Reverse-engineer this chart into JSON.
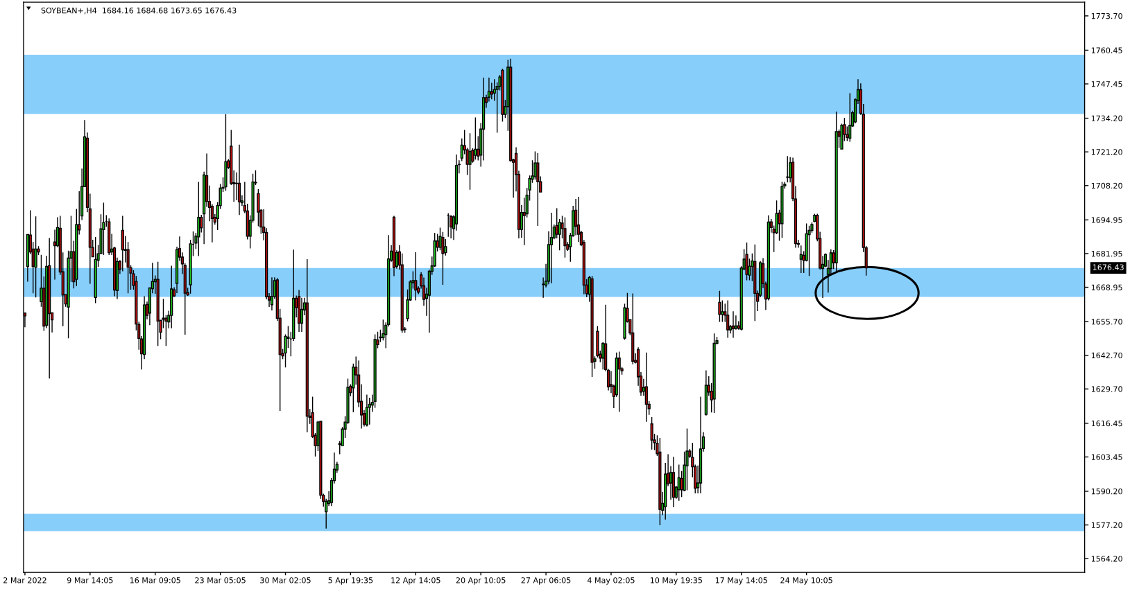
{
  "chart_data": {
    "type": "candlestick",
    "title": "SOYBEAN+,H4  1684.16 1684.68 1673.65 1676.43",
    "categories": [
      "2 Mar 2022",
      null,
      null,
      null,
      null,
      null,
      null,
      null,
      null,
      null,
      null,
      null,
      null,
      null,
      null,
      null,
      null,
      null,
      null,
      null,
      null,
      null,
      null,
      null,
      "9 Mar 14:05",
      null,
      null,
      null,
      null,
      null,
      null,
      null,
      null,
      null,
      null,
      null,
      null,
      null,
      null,
      null,
      null,
      null,
      null,
      null,
      null,
      null,
      null,
      null,
      "16 Mar 09:05",
      null,
      null,
      null,
      null,
      null,
      null,
      null,
      null,
      null,
      null,
      null,
      null,
      null,
      null,
      null,
      null,
      null,
      null,
      null,
      null,
      null,
      null,
      null,
      "23 Mar 05:05",
      null,
      null,
      null,
      null,
      null,
      null,
      null,
      null,
      null,
      null,
      null,
      null,
      null,
      null,
      null,
      null,
      null,
      null,
      null,
      null,
      null,
      null,
      null,
      "30 Mar 02:05",
      null,
      null,
      null,
      null,
      null,
      null,
      null,
      null,
      null,
      null,
      null,
      null,
      null,
      null,
      null,
      null,
      null,
      null,
      null,
      null,
      null,
      null,
      null,
      "5 Apr 19:35",
      null,
      null,
      null,
      null,
      null,
      null,
      null,
      null,
      null,
      null,
      null,
      null,
      null,
      null,
      null,
      null,
      null,
      null,
      null,
      null,
      null,
      null,
      null,
      "12 Apr 14:05",
      null,
      null,
      null,
      null,
      null,
      null,
      null,
      null,
      null,
      null,
      null,
      null,
      null,
      null,
      null,
      null,
      null,
      null,
      null,
      null,
      null,
      null,
      null,
      "20 Apr 10:05",
      null,
      null,
      null,
      null,
      null,
      null,
      null,
      null,
      null,
      null,
      null,
      null,
      null,
      null,
      null,
      null,
      null,
      null,
      null,
      null,
      null,
      null,
      null,
      "27 Apr 06:05",
      null,
      null,
      null,
      null,
      null,
      null,
      null,
      null,
      null,
      null,
      null,
      null,
      null,
      null,
      null,
      null,
      null,
      null,
      null,
      null,
      null,
      null,
      null,
      "4 May 02:05",
      null,
      null,
      null,
      null,
      null,
      null,
      null,
      null,
      null,
      null,
      null,
      null,
      null,
      null,
      null,
      null,
      null,
      null,
      null,
      null,
      null,
      null,
      null,
      "10 May 19:35",
      null,
      null,
      null,
      null,
      null,
      null,
      null,
      null,
      null,
      null,
      null,
      null,
      null,
      null,
      null,
      null,
      null,
      null,
      null,
      null,
      null,
      null,
      null,
      "17 May 14:05",
      null,
      null,
      null,
      null,
      null,
      null,
      null,
      null,
      null,
      null,
      null,
      null,
      null,
      null,
      null,
      null,
      null,
      null,
      null,
      null,
      null,
      null,
      null,
      "24 May 10:05",
      null,
      null,
      null,
      null,
      null,
      null,
      null,
      null,
      null,
      null,
      null,
      null,
      null,
      null,
      null,
      null,
      null,
      null,
      null,
      null,
      null,
      null,
      null,
      null,
      null,
      null,
      null,
      null,
      null,
      null,
      null,
      null,
      null,
      null,
      null,
      null,
      null,
      null,
      null,
      null,
      null,
      null,
      null,
      null,
      null,
      null,
      null,
      null,
      null,
      null,
      null,
      null,
      null,
      null,
      null,
      null,
      null,
      null,
      null,
      null,
      null,
      null,
      null,
      null,
      null,
      null,
      null,
      null,
      null,
      null,
      null,
      null,
      null,
      null,
      null,
      null,
      null,
      null,
      null,
      null,
      null,
      null,
      null,
      null,
      null,
      null,
      null,
      null,
      null,
      null,
      null,
      null,
      null,
      null,
      null,
      null,
      null,
      null,
      null,
      null,
      null,
      null
    ],
    "ohlc": [
      [
        1659.0,
        1659.0,
        1653.7,
        1657.9
      ],
      [
        1677.0,
        1689.3,
        1671.3,
        1689.3
      ],
      [
        1689.1,
        1698.5,
        1681.9,
        1682.6
      ],
      [
        1683.7,
        1686.2,
        1666.8,
        1677.0
      ],
      [
        1676.7,
        1696.1,
        1665.2,
        1683.7
      ],
      [
        1683.7,
        1684.6,
        1681.6,
        1682.6
      ],
      [
        1663.4,
        1681.3,
        1661.6,
        1668.6
      ],
      [
        1668.6,
        1672.9,
        1652.3,
        1654.0
      ],
      [
        1654.3,
        1680.9,
        1653.4,
        1677.0
      ],
      [
        1677.3,
        1687.8,
        1633.9,
        1658.8
      ],
      [
        1659.1,
        1659.1,
        1651.7,
        1656.4
      ],
      [
        1686.4,
        1691.0,
        1672.1,
        1685.0
      ],
      [
        1685.0,
        1695.8,
        1684.6,
        1692.0
      ],
      [
        1691.7,
        1696.3,
        1673.9,
        1674.8
      ],
      [
        1674.9,
        1682.2,
        1654.1,
        1666.0
      ],
      [
        1666.1,
        1666.1,
        1661.6,
        1662.5
      ],
      [
        1661.3,
        1682.9,
        1649.4,
        1680.2
      ],
      [
        1680.2,
        1696.3,
        1671.2,
        1682.7
      ],
      [
        1682.7,
        1686.7,
        1668.7,
        1671.1
      ],
      [
        1672.0,
        1699.0,
        1669.6,
        1693.1
      ],
      [
        1693.1,
        1705.8,
        1689.5,
        1691.1
      ],
      [
        1696.5,
        1714.6,
        1695.1,
        1707.8
      ],
      [
        1707.8,
        1733.3,
        1707.8,
        1727.0
      ],
      [
        1726.5,
        1728.5,
        1698.1,
        1699.8
      ],
      [
        1699.2,
        1704.9,
        1670.5,
        1684.4
      ],
      [
        1684.3,
        1687.1,
        1680.7,
        1680.7
      ],
      [
        1665.0,
        1688.2,
        1663.0,
        1679.7
      ],
      [
        1679.4,
        1685.1,
        1677.0,
        1681.9
      ],
      [
        1682.0,
        1696.9,
        1682.0,
        1691.5
      ],
      [
        1691.2,
        1701.4,
        1681.6,
        1693.9
      ],
      [
        1694.4,
        1696.6,
        1692.5,
        1694.4
      ],
      [
        1694.2,
        1695.3,
        1681.6,
        1682.3
      ],
      [
        1682.6,
        1689.4,
        1681.6,
        1683.7
      ],
      [
        1684.1,
        1684.4,
        1665.7,
        1667.9
      ],
      [
        1667.7,
        1680.2,
        1664.6,
        1678.9
      ],
      [
        1678.9,
        1679.3,
        1674.3,
        1675.9
      ],
      [
        1690.9,
        1696.3,
        1675.3,
        1683.4
      ],
      [
        1683.5,
        1688.6,
        1678.7,
        1683.2
      ],
      [
        1683.5,
        1686.2,
        1666.8,
        1676.7
      ],
      [
        1676.5,
        1677.3,
        1668.2,
        1674.4
      ],
      [
        1674.1,
        1675.3,
        1668.2,
        1669.7
      ],
      [
        1671.2,
        1673.1,
        1652.5,
        1654.8
      ],
      [
        1654.6,
        1655.5,
        1645.0,
        1649.2
      ],
      [
        1649.0,
        1649.9,
        1637.4,
        1643.3
      ],
      [
        1643.0,
        1665.3,
        1641.4,
        1662.1
      ],
      [
        1662.3,
        1663.2,
        1656.8,
        1658.1
      ],
      [
        1659.0,
        1668.7,
        1654.5,
        1668.7
      ],
      [
        1668.4,
        1678.2,
        1666.8,
        1671.2
      ],
      [
        1671.1,
        1673.3,
        1666.6,
        1672.0
      ],
      [
        1672.0,
        1678.6,
        1646.5,
        1655.9
      ],
      [
        1656.2,
        1656.2,
        1649.1,
        1651.6
      ],
      [
        1657.0,
        1664.3,
        1653.4,
        1656.6
      ],
      [
        1657.0,
        1658.1,
        1646.5,
        1655.9
      ],
      [
        1655.6,
        1659.7,
        1653.3,
        1658.1
      ],
      [
        1658.1,
        1677.1,
        1653.3,
        1668.3
      ],
      [
        1668.0,
        1668.8,
        1665.4,
        1665.6
      ],
      [
        1670.4,
        1684.4,
        1666.9,
        1683.5
      ],
      [
        1683.9,
        1688.4,
        1679.3,
        1680.6
      ],
      [
        1680.6,
        1682.2,
        1674.2,
        1678.0
      ],
      [
        1677.4,
        1678.0,
        1650.8,
        1666.7
      ],
      [
        1666.9,
        1668.6,
        1665.8,
        1666.0
      ],
      [
        1669.9,
        1687.1,
        1666.7,
        1685.7
      ],
      [
        1685.5,
        1690.3,
        1681.2,
        1685.5
      ],
      [
        1686.0,
        1689.8,
        1683.9,
        1688.7
      ],
      [
        1688.4,
        1709.4,
        1681.2,
        1695.9
      ],
      [
        1695.9,
        1696.7,
        1690.3,
        1691.9
      ],
      [
        1697.3,
        1713.4,
        1685.8,
        1712.3
      ],
      [
        1712.0,
        1720.4,
        1700.2,
        1702.1
      ],
      [
        1702.1,
        1708.0,
        1694.6,
        1699.8
      ],
      [
        1700.2,
        1700.8,
        1686.5,
        1695.5
      ],
      [
        1695.9,
        1697.0,
        1693.3,
        1694.1
      ],
      [
        1695.5,
        1701.6,
        1691.2,
        1700.5
      ],
      [
        1700.5,
        1708.6,
        1699.4,
        1707.2
      ],
      [
        1707.2,
        1711.2,
        1705.9,
        1707.5
      ],
      [
        1707.7,
        1735.6,
        1706.4,
        1717.4
      ],
      [
        1717.7,
        1718.2,
        1714.8,
        1715.2
      ],
      [
        1723.4,
        1729.5,
        1708.6,
        1709.1
      ],
      [
        1709.3,
        1713.9,
        1702.1,
        1708.9
      ],
      [
        1709.1,
        1713.1,
        1702.7,
        1709.0
      ],
      [
        1709.1,
        1723.8,
        1697.0,
        1701.9
      ],
      [
        1701.6,
        1704.3,
        1700.5,
        1702.3
      ],
      [
        1700.5,
        1709.4,
        1697.8,
        1698.4
      ],
      [
        1698.4,
        1701.0,
        1687.6,
        1688.7
      ],
      [
        1688.7,
        1696.5,
        1684.1,
        1694.8
      ],
      [
        1694.8,
        1712.6,
        1694.1,
        1709.6
      ],
      [
        1709.4,
        1713.9,
        1708.6,
        1709.3
      ],
      [
        1705.1,
        1706.6,
        1692.7,
        1698.0
      ],
      [
        1698.7,
        1698.9,
        1689.8,
        1692.2
      ],
      [
        1692.2,
        1698.9,
        1687.3,
        1690.1
      ],
      [
        1690.1,
        1691.6,
        1664.5,
        1665.3
      ],
      [
        1665.4,
        1666.5,
        1661.5,
        1664.0
      ],
      [
        1662.2,
        1672.6,
        1660.2,
        1665.4
      ],
      [
        1665.4,
        1672.6,
        1664.7,
        1671.5
      ],
      [
        1671.8,
        1672.3,
        1656.1,
        1657.0
      ],
      [
        1657.0,
        1660.4,
        1621.4,
        1643.0
      ],
      [
        1643.4,
        1645.0,
        1641.4,
        1642.5
      ],
      [
        1643.6,
        1650.6,
        1638.2,
        1650.0
      ],
      [
        1649.2,
        1653.8,
        1645.7,
        1649.7
      ],
      [
        1649.0,
        1651.6,
        1642.5,
        1649.0
      ],
      [
        1649.2,
        1683.3,
        1648.4,
        1664.7
      ],
      [
        1664.7,
        1665.6,
        1657.5,
        1661.1
      ],
      [
        1665.4,
        1667.7,
        1651.9,
        1655.1
      ],
      [
        1655.1,
        1664.7,
        1651.9,
        1660.4
      ],
      [
        1660.2,
        1664.7,
        1658.3,
        1662.9
      ],
      [
        1662.9,
        1679.6,
        1613.2,
        1619.2
      ],
      [
        1619.2,
        1621.8,
        1616.4,
        1618.7
      ],
      [
        1620.5,
        1626.5,
        1611.0,
        1611.3
      ],
      [
        1611.8,
        1612.5,
        1603.8,
        1607.8
      ],
      [
        1607.8,
        1617.2,
        1605.9,
        1616.9
      ],
      [
        1617.2,
        1617.2,
        1587.5,
        1588.7
      ],
      [
        1588.7,
        1589.1,
        1584.4,
        1586.3
      ],
      [
        1582.3,
        1587.1,
        1576.0,
        1586.3
      ],
      [
        1585.5,
        1590.1,
        1584.7,
        1586.5
      ],
      [
        1585.9,
        1595.1,
        1584.7,
        1594.3
      ],
      [
        1594.3,
        1605.0,
        1593.4,
        1598.7
      ],
      [
        1598.4,
        1601.4,
        1597.5,
        1600.6
      ],
      [
        1608.2,
        1609.4,
        1604.7,
        1608.6
      ],
      [
        1607.8,
        1614.8,
        1607.8,
        1614.2
      ],
      [
        1614.2,
        1619.0,
        1611.0,
        1616.9
      ],
      [
        1616.7,
        1633.5,
        1616.4,
        1630.3
      ],
      [
        1630.7,
        1631.3,
        1627.1,
        1628.3
      ],
      [
        1630.1,
        1639.3,
        1620.9,
        1638.1
      ],
      [
        1638.1,
        1642.0,
        1631.6,
        1635.1
      ],
      [
        1635.1,
        1640.5,
        1622.9,
        1624.7
      ],
      [
        1624.9,
        1631.3,
        1614.6,
        1619.7
      ],
      [
        1620.2,
        1621.4,
        1615.4,
        1616.1
      ],
      [
        1615.8,
        1627.3,
        1615.4,
        1622.6
      ],
      [
        1622.6,
        1626.1,
        1616.1,
        1623.8
      ],
      [
        1623.5,
        1627.3,
        1621.1,
        1624.5
      ],
      [
        1624.9,
        1650.6,
        1622.6,
        1648.8
      ],
      [
        1648.6,
        1651.6,
        1645.6,
        1646.8
      ],
      [
        1649.4,
        1652.4,
        1648.0,
        1649.7
      ],
      [
        1649.5,
        1656.3,
        1648.6,
        1651.0
      ],
      [
        1650.7,
        1655.2,
        1645.6,
        1654.3
      ],
      [
        1654.6,
        1688.9,
        1654.0,
        1679.9
      ],
      [
        1679.4,
        1685.0,
        1679.0,
        1682.9
      ],
      [
        1696.0,
        1696.3,
        1673.4,
        1676.6
      ],
      [
        1677.0,
        1683.0,
        1676.3,
        1682.3
      ],
      [
        1682.6,
        1685.0,
        1676.0,
        1677.5
      ],
      [
        1677.6,
        1681.8,
        1651.6,
        1652.4
      ],
      [
        1652.8,
        1653.4,
        1651.6,
        1652.6
      ],
      [
        1656.9,
        1667.9,
        1656.0,
        1664.1
      ],
      [
        1664.1,
        1671.5,
        1663.9,
        1671.0
      ],
      [
        1670.7,
        1674.9,
        1668.6,
        1671.5
      ],
      [
        1671.5,
        1682.3,
        1664.1,
        1667.9
      ],
      [
        1668.6,
        1669.1,
        1666.5,
        1667.1
      ],
      [
        1673.7,
        1674.6,
        1668.6,
        1669.5
      ],
      [
        1669.5,
        1672.5,
        1662.0,
        1664.3
      ],
      [
        1664.7,
        1668.6,
        1658.1,
        1666.3
      ],
      [
        1665.9,
        1675.5,
        1651.6,
        1675.1
      ],
      [
        1675.1,
        1680.6,
        1673.9,
        1677.2
      ],
      [
        1677.2,
        1689.8,
        1677.0,
        1686.8
      ],
      [
        1686.8,
        1689.4,
        1683.0,
        1684.4
      ],
      [
        1684.4,
        1691.8,
        1683.4,
        1688.6
      ],
      [
        1688.2,
        1690.1,
        1670.1,
        1682.0
      ],
      [
        1682.3,
        1687.4,
        1681.4,
        1684.6
      ],
      [
        1696.7,
        1697.3,
        1688.6,
        1696.7
      ],
      [
        1696.3,
        1696.6,
        1688.0,
        1692.2
      ],
      [
        1691.6,
        1696.6,
        1687.4,
        1696.1
      ],
      [
        1693.4,
        1720.0,
        1691.0,
        1716.0
      ],
      [
        1716.3,
        1717.8,
        1713.1,
        1716.4
      ],
      [
        1718.8,
        1726.2,
        1717.8,
        1723.8
      ],
      [
        1723.6,
        1729.5,
        1720.5,
        1722.0
      ],
      [
        1722.0,
        1722.6,
        1712.5,
        1716.4
      ],
      [
        1716.4,
        1728.2,
        1706.8,
        1721.4
      ],
      [
        1721.8,
        1722.4,
        1717.2,
        1717.6
      ],
      [
        1719.9,
        1734.3,
        1718.4,
        1722.2
      ],
      [
        1722.2,
        1727.1,
        1718.1,
        1719.6
      ],
      [
        1720.0,
        1732.2,
        1715.7,
        1730.0
      ],
      [
        1730.0,
        1749.7,
        1718.1,
        1742.1
      ],
      [
        1742.1,
        1743.1,
        1738.4,
        1740.3
      ],
      [
        1742.3,
        1749.7,
        1740.8,
        1744.5
      ],
      [
        1744.5,
        1747.7,
        1741.7,
        1743.5
      ],
      [
        1743.9,
        1749.1,
        1741.1,
        1745.3
      ],
      [
        1745.3,
        1747.9,
        1728.8,
        1746.5
      ],
      [
        1746.5,
        1750.7,
        1745.1,
        1750.1
      ],
      [
        1752.7,
        1753.1,
        1733.1,
        1735.7
      ],
      [
        1735.7,
        1741.1,
        1734.5,
        1738.7
      ],
      [
        1738.7,
        1756.6,
        1729.5,
        1753.9
      ],
      [
        1753.9,
        1757.0,
        1717.6,
        1717.8
      ],
      [
        1718.1,
        1718.4,
        1703.7,
        1717.2
      ],
      [
        1720.6,
        1722.8,
        1706.1,
        1712.5
      ],
      [
        1712.5,
        1713.7,
        1688.0,
        1691.3
      ],
      [
        1691.3,
        1700.5,
        1688.2,
        1697.8
      ],
      [
        1697.8,
        1703.3,
        1685.4,
        1696.6
      ],
      [
        1697.3,
        1707.1,
        1696.1,
        1704.5
      ],
      [
        1706.5,
        1711.9,
        1702.6,
        1710.9
      ],
      [
        1710.7,
        1717.8,
        1709.5,
        1711.9
      ],
      [
        1711.6,
        1721.2,
        1710.7,
        1716.9
      ],
      [
        1716.9,
        1720.5,
        1692.8,
        1709.7
      ],
      [
        1709.7,
        1711.6,
        1705.7,
        1705.7
      ],
      [
        1670.1,
        1672.5,
        1665.1,
        1670.0
      ],
      [
        1669.8,
        1677.8,
        1669.1,
        1671.3
      ],
      [
        1671.3,
        1690.4,
        1670.3,
        1685.4
      ],
      [
        1685.4,
        1697.5,
        1670.7,
        1688.2
      ],
      [
        1688.0,
        1693.0,
        1687.7,
        1692.2
      ],
      [
        1692.8,
        1699.3,
        1688.0,
        1689.4
      ],
      [
        1689.4,
        1695.1,
        1683.4,
        1694.0
      ],
      [
        1693.7,
        1696.3,
        1688.0,
        1691.6
      ],
      [
        1691.6,
        1695.7,
        1680.6,
        1685.0
      ],
      [
        1685.4,
        1686.2,
        1683.2,
        1683.6
      ],
      [
        1684.6,
        1689.8,
        1679.0,
        1688.9
      ],
      [
        1688.9,
        1700.2,
        1688.6,
        1698.5
      ],
      [
        1698.7,
        1702.9,
        1689.2,
        1692.5
      ],
      [
        1693.0,
        1703.7,
        1686.6,
        1689.4
      ],
      [
        1690.1,
        1690.6,
        1685.0,
        1685.4
      ],
      [
        1686.2,
        1687.0,
        1666.5,
        1669.8
      ],
      [
        1669.8,
        1671.9,
        1665.3,
        1666.5
      ],
      [
        1666.3,
        1673.1,
        1663.5,
        1672.7
      ],
      [
        1672.2,
        1673.1,
        1634.5,
        1640.0
      ],
      [
        1640.4,
        1642.1,
        1637.7,
        1641.3
      ],
      [
        1651.9,
        1653.8,
        1642.1,
        1642.6
      ],
      [
        1643.1,
        1644.3,
        1640.2,
        1641.6
      ],
      [
        1641.6,
        1647.6,
        1637.4,
        1647.3
      ],
      [
        1647.1,
        1662.0,
        1636.7,
        1637.2
      ],
      [
        1636.9,
        1637.2,
        1629.3,
        1630.5
      ],
      [
        1631.4,
        1636.4,
        1628.3,
        1630.8
      ],
      [
        1630.8,
        1631.2,
        1622.5,
        1626.8
      ],
      [
        1627.5,
        1643.6,
        1626.8,
        1641.6
      ],
      [
        1641.6,
        1643.9,
        1621.1,
        1637.4
      ],
      [
        1637.5,
        1638.0,
        1635.4,
        1636.7
      ],
      [
        1649.3,
        1662.4,
        1648.9,
        1661.0
      ],
      [
        1660.8,
        1666.6,
        1655.5,
        1655.8
      ],
      [
        1656.5,
        1656.5,
        1650.6,
        1651.3
      ],
      [
        1651.3,
        1666.4,
        1639.4,
        1640.4
      ],
      [
        1640.7,
        1643.3,
        1639.7,
        1640.0
      ],
      [
        1644.9,
        1645.6,
        1631.1,
        1634.4
      ],
      [
        1634.7,
        1636.0,
        1627.3,
        1628.5
      ],
      [
        1628.8,
        1633.4,
        1627.3,
        1630.3
      ],
      [
        1630.5,
        1643.6,
        1617.2,
        1623.8
      ],
      [
        1623.8,
        1624.8,
        1619.9,
        1622.1
      ],
      [
        1616.2,
        1618.6,
        1606.5,
        1610.0
      ],
      [
        1610.0,
        1612.2,
        1606.3,
        1609.0
      ],
      [
        1608.7,
        1611.6,
        1604.0,
        1604.7
      ],
      [
        1605.3,
        1610.6,
        1577.3,
        1583.2
      ],
      [
        1582.9,
        1589.8,
        1581.2,
        1585.5
      ],
      [
        1584.2,
        1601.0,
        1579.5,
        1596.8
      ],
      [
        1597.1,
        1604.3,
        1592.4,
        1593.1
      ],
      [
        1593.4,
        1599.7,
        1587.2,
        1597.4
      ],
      [
        1597.4,
        1603.3,
        1584.2,
        1587.9
      ],
      [
        1587.9,
        1592.1,
        1587.5,
        1591.8
      ],
      [
        1590.8,
        1600.3,
        1586.7,
        1595.4
      ],
      [
        1595.1,
        1597.8,
        1588.2,
        1590.8
      ],
      [
        1590.6,
        1605.3,
        1590.4,
        1600.3
      ],
      [
        1600.0,
        1614.2,
        1590.8,
        1605.7
      ],
      [
        1605.7,
        1606.3,
        1603.3,
        1603.7
      ],
      [
        1603.3,
        1608.7,
        1595.8,
        1599.7
      ],
      [
        1599.7,
        1600.3,
        1589.6,
        1591.4
      ],
      [
        1591.6,
        1600.0,
        1589.6,
        1593.4
      ],
      [
        1593.4,
        1626.5,
        1589.6,
        1606.5
      ],
      [
        1606.7,
        1612.9,
        1605.7,
        1611.2
      ],
      [
        1619.9,
        1636.7,
        1619.6,
        1631.1
      ],
      [
        1631.1,
        1634.4,
        1627.3,
        1628.5
      ],
      [
        1628.8,
        1631.7,
        1620.8,
        1625.5
      ],
      [
        1625.8,
        1650.9,
        1620.6,
        1647.3
      ],
      [
        1647.3,
        1649.6,
        1647.1,
        1648.3
      ],
      [
        1663.1,
        1667.4,
        1655.8,
        1658.5
      ],
      [
        1658.5,
        1663.7,
        1655.8,
        1659.5
      ],
      [
        1659.5,
        1662.4,
        1655.8,
        1658.2
      ],
      [
        1658.2,
        1663.7,
        1649.6,
        1652.5
      ],
      [
        1652.5,
        1654.2,
        1651.3,
        1653.8
      ],
      [
        1654.0,
        1659.5,
        1649.6,
        1653.0
      ],
      [
        1653.1,
        1657.9,
        1652.8,
        1654.0
      ],
      [
        1654.1,
        1655.7,
        1652.8,
        1653.1
      ],
      [
        1652.8,
        1676.9,
        1652.5,
        1676.4
      ],
      [
        1676.0,
        1683.5,
        1675.7,
        1679.8
      ],
      [
        1681.6,
        1686.0,
        1671.8,
        1673.9
      ],
      [
        1673.6,
        1679.8,
        1671.8,
        1677.1
      ],
      [
        1676.9,
        1681.8,
        1671.5,
        1679.1
      ],
      [
        1678.9,
        1685.3,
        1656.1,
        1666.6
      ],
      [
        1666.6,
        1667.5,
        1659.9,
        1663.5
      ],
      [
        1665.9,
        1678.9,
        1665.3,
        1678.4
      ],
      [
        1678.0,
        1680.0,
        1668.8,
        1670.4
      ],
      [
        1670.2,
        1670.9,
        1660.4,
        1664.4
      ],
      [
        1664.6,
        1696.5,
        1664.1,
        1694.1
      ],
      [
        1694.2,
        1695.1,
        1690.2,
        1692.0
      ],
      [
        1691.4,
        1692.6,
        1682.7,
        1690.0
      ],
      [
        1690.0,
        1702.3,
        1689.6,
        1697.4
      ],
      [
        1697.6,
        1698.7,
        1687.1,
        1693.5
      ],
      [
        1693.5,
        1709.4,
        1688.2,
        1707.8
      ],
      [
        1708.1,
        1709.4,
        1707.2,
        1708.7
      ],
      [
        1711.4,
        1719.4,
        1709.6,
        1711.5
      ],
      [
        1711.2,
        1719.0,
        1709.6,
        1717.0
      ],
      [
        1717.2,
        1718.8,
        1702.4,
        1703.2
      ],
      [
        1703.0,
        1707.8,
        1684.4,
        1685.8
      ],
      [
        1685.8,
        1687.1,
        1684.4,
        1685.6
      ],
      [
        1679.8,
        1684.9,
        1674.6,
        1681.6
      ],
      [
        1681.3,
        1682.7,
        1674.6,
        1679.3
      ],
      [
        1679.3,
        1693.4,
        1679.1,
        1689.6
      ],
      [
        1689.3,
        1692.5,
        1673.5,
        1690.9
      ],
      [
        1690.9,
        1693.8,
        1690.2,
        1693.2
      ],
      [
        1694.4,
        1697.1,
        1694.2,
        1696.7
      ],
      [
        1696.7,
        1697.1,
        1686.9,
        1687.6
      ],
      [
        1687.8,
        1690.2,
        1676.0,
        1676.4
      ],
      [
        1676.2,
        1680.9,
        1665.0,
        1677.8
      ],
      [
        1677.1,
        1681.8,
        1676.9,
        1681.6
      ],
      [
        1673.9,
        1679.3,
        1667.1,
        1676.2
      ],
      [
        1676.2,
        1683.4,
        1673.9,
        1682.2
      ],
      [
        1682.2,
        1683.1,
        1676.2,
        1678.4
      ],
      [
        1678.4,
        1736.6,
        1674.6,
        1729.0
      ],
      [
        1729.0,
        1729.7,
        1722.9,
        1727.2
      ],
      [
        1722.3,
        1731.9,
        1722.3,
        1731.5
      ],
      [
        1731.7,
        1734.2,
        1725.6,
        1727.9
      ],
      [
        1727.9,
        1730.8,
        1725.6,
        1726.8
      ],
      [
        1726.5,
        1743.7,
        1725.3,
        1731.5
      ],
      [
        1731.2,
        1736.9,
        1731.0,
        1736.3
      ],
      [
        1732.8,
        1741.7,
        1732.4,
        1741.3
      ],
      [
        1741.0,
        1749.1,
        1739.9,
        1745.2
      ],
      [
        1745.2,
        1747.5,
        1735.7,
        1736.1
      ],
      [
        1735.7,
        1739.5,
        1682.7,
        1684.3
      ],
      [
        1684.16,
        1684.68,
        1673.65,
        1676.43
      ],
      null,
      null,
      null,
      null,
      null,
      null,
      null,
      null,
      null,
      null,
      null,
      null,
      null,
      null,
      null,
      null,
      null,
      null,
      null,
      null,
      null,
      null,
      null,
      null,
      null,
      null,
      null,
      null,
      null,
      null,
      null,
      null,
      null,
      null,
      null,
      null,
      null,
      null,
      null,
      null,
      null,
      null,
      null,
      null,
      null,
      null,
      null,
      null,
      null,
      null,
      null,
      null,
      null,
      null,
      null,
      null,
      null,
      null,
      null,
      null,
      null,
      null,
      null,
      null,
      null,
      null,
      null,
      null,
      null,
      null,
      null,
      null,
      null,
      null,
      null,
      null,
      null,
      null,
      null,
      null
    ],
    "colors": [
      "#cc1111",
      "#1ec81e",
      "#cc1111",
      "#cc1111",
      "#1ec81e",
      "#cc1111",
      "#1ec81e",
      "#cc1111",
      "#1ec81e",
      "#cc1111",
      "#cc1111",
      "#cc1111",
      "#1ec81e",
      "#cc1111",
      "#cc1111",
      "#cc1111",
      "#1ec81e",
      "#1ec81e",
      "#cc1111",
      "#1ec81e",
      "#cc1111",
      "#1ec81e",
      "#1ec81e",
      "#cc1111",
      "#cc1111",
      "#cc1111",
      "#1ec81e",
      "#1ec81e",
      "#1ec81e",
      "#1ec81e",
      "#000000",
      "#cc1111",
      "#1ec81e",
      "#cc1111",
      "#1ec81e",
      "#cc1111",
      "#cc1111",
      "#cc1111",
      "#cc1111",
      "#cc1111",
      "#cc1111",
      "#cc1111",
      "#cc1111",
      "#cc1111",
      "#1ec81e",
      "#cc1111",
      "#1ec81e",
      "#1ec81e",
      "#1ec81e",
      "#cc1111",
      "#cc1111",
      "#cc1111",
      "#cc1111",
      "#1ec81e",
      "#1ec81e",
      "#cc1111",
      "#1ec81e",
      "#cc1111",
      "#cc1111",
      "#cc1111",
      "#cc1111",
      "#1ec81e",
      "#000000",
      "#1ec81e",
      "#1ec81e",
      "#cc1111",
      "#1ec81e",
      "#cc1111",
      "#cc1111",
      "#cc1111",
      "#cc1111",
      "#1ec81e",
      "#1ec81e",
      "#1ec81e",
      "#1ec81e",
      "#cc1111",
      "#cc1111",
      "#cc1111",
      "#cc1111",
      "#cc1111",
      "#1ec81e",
      "#cc1111",
      "#cc1111",
      "#1ec81e",
      "#1ec81e",
      "#cc1111",
      "#cc1111",
      "#cc1111",
      "#cc1111",
      "#cc1111",
      "#cc1111",
      "#1ec81e",
      "#1ec81e",
      "#cc1111",
      "#cc1111",
      "#cc1111",
      "#1ec81e",
      "#1ec81e",
      "#000000",
      "#1ec81e",
      "#cc1111",
      "#cc1111",
      "#1ec81e",
      "#1ec81e",
      "#cc1111",
      "#cc1111",
      "#cc1111",
      "#cc1111",
      "#1ec81e",
      "#cc1111",
      "#cc1111",
      "#1ec81e",
      "#1ec81e",
      "#1ec81e",
      "#1ec81e",
      "#1ec81e",
      "#1ec81e",
      "#1ec81e",
      "#1ec81e",
      "#1ec81e",
      "#cc1111",
      "#1ec81e",
      "#cc1111",
      "#cc1111",
      "#cc1111",
      "#cc1111",
      "#1ec81e",
      "#1ec81e",
      "#1ec81e",
      "#1ec81e",
      "#cc1111",
      "#1ec81e",
      "#1ec81e",
      "#1ec81e",
      "#1ec81e",
      "#1ec81e",
      "#cc1111",
      "#1ec81e",
      "#cc1111",
      "#cc1111",
      "#cc1111",
      "#1ec81e",
      "#1ec81e",
      "#1ec81e",
      "#cc1111",
      "#cc1111",
      "#cc1111",
      "#cc1111",
      "#1ec81e",
      "#1ec81e",
      "#1ec81e",
      "#1ec81e",
      "#cc1111",
      "#1ec81e",
      "#cc1111",
      "#1ec81e",
      "#000000",
      "#cc1111",
      "#1ec81e",
      "#1ec81e",
      "#1ec81e",
      "#1ec81e",
      "#cc1111",
      "#cc1111",
      "#1ec81e",
      "#cc1111",
      "#1ec81e",
      "#cc1111",
      "#1ec81e",
      "#1ec81e",
      "#cc1111",
      "#1ec81e",
      "#cc1111",
      "#1ec81e",
      "#1ec81e",
      "#1ec81e",
      "#cc1111",
      "#1ec81e",
      "#1ec81e",
      "#cc1111",
      "#cc1111",
      "#cc1111",
      "#cc1111",
      "#1ec81e",
      "#cc1111",
      "#1ec81e",
      "#1ec81e",
      "#1ec81e",
      "#1ec81e",
      "#cc1111",
      "#cc1111",
      "#cc1111",
      "#1ec81e",
      "#1ec81e",
      "#1ec81e",
      "#1ec81e",
      "#cc1111",
      "#1ec81e",
      "#cc1111",
      "#cc1111",
      "#cc1111",
      "#1ec81e",
      "#1ec81e",
      "#cc1111",
      "#cc1111",
      "#cc1111",
      "#cc1111",
      "#cc1111",
      "#1ec81e",
      "#cc1111",
      "#1ec81e",
      "#cc1111",
      "#cc1111",
      "#1ec81e",
      "#cc1111",
      "#cc1111",
      "#cc1111",
      "#cc1111",
      "#1ec81e",
      "#cc1111",
      "#cc1111",
      "#1ec81e",
      "#cc1111",
      "#cc1111",
      "#cc1111",
      "#cc1111",
      "#cc1111",
      "#cc1111",
      "#1ec81e",
      "#cc1111",
      "#cc1111",
      "#cc1111",
      "#cc1111",
      "#cc1111",
      "#cc1111",
      "#1ec81e",
      "#1ec81e",
      "#cc1111",
      "#1ec81e",
      "#cc1111",
      "#1ec81e",
      "#1ec81e",
      "#cc1111",
      "#1ec81e",
      "#1ec81e",
      "#cc1111",
      "#cc1111",
      "#cc1111",
      "#1ec81e",
      "#1ec81e",
      "#1ec81e",
      "#1ec81e",
      "#cc1111",
      "#cc1111",
      "#1ec81e",
      "#1ec81e",
      "#cc1111",
      "#1ec81e",
      "#cc1111",
      "#cc1111",
      "#1ec81e",
      "#cc1111",
      "#1ec81e",
      "#cc1111",
      "#1ec81e",
      "#1ec81e",
      "#cc1111",
      "#1ec81e",
      "#1ec81e",
      "#cc1111",
      "#cc1111",
      "#1ec81e",
      "#cc1111",
      "#cc1111",
      "#1ec81e",
      "#cc1111",
      "#cc1111",
      "#1ec81e",
      "#cc1111",
      "#1ec81e",
      "#1ec81e",
      "#1ec81e",
      "#1ec81e",
      "#cc1111",
      "#cc1111",
      "#cc1111",
      "#1ec81e",
      "#cc1111",
      "#1ec81e",
      "#1ec81e",
      "#1ec81e",
      "#1ec81e",
      "#cc1111",
      "#cc1111",
      "#1ec81e",
      "#1ec81e",
      "#1ec81e",
      "#1ec81e",
      "#cc1111",
      "#1ec81e",
      "#cc1111",
      "#1ec81e",
      "#cc1111",
      "#cc1111",
      "#1ec81e",
      "#1ec81e",
      "#1ec81e",
      "#1ec81e",
      "#cc1111",
      "#cc1111",
      "#cc1111",
      null,
      null,
      null,
      null,
      null,
      null,
      null,
      null,
      null,
      null,
      null,
      null,
      null,
      null,
      null,
      null,
      null,
      null,
      null,
      null,
      null,
      null,
      null,
      null,
      null,
      null,
      null,
      null,
      null,
      null,
      null,
      null,
      null,
      null,
      null,
      null,
      null,
      null,
      null,
      null,
      null,
      null,
      null,
      null,
      null,
      null,
      null,
      null,
      null,
      null,
      null,
      null,
      null,
      null,
      null,
      null,
      null,
      null,
      null,
      null,
      null,
      null,
      null,
      null,
      null,
      null,
      null,
      null,
      null,
      null,
      null,
      null,
      null,
      null,
      null,
      null,
      null,
      null,
      null,
      null
    ],
    "ylim": [
      1558.9,
      1779.0
    ],
    "yticks": [
      {
        "value": 1564.2,
        "label": "1564.20"
      },
      {
        "value": 1577.2,
        "label": "1577.20"
      },
      {
        "value": 1590.2,
        "label": "1590.20"
      },
      1603.45,
      1616.45,
      {
        "value": 1629.7,
        "label": "1629.70"
      },
      {
        "value": 1642.7,
        "label": "1642.70"
      },
      {
        "value": 1655.7,
        "label": "1655.70"
      },
      1668.95,
      1681.95,
      1694.95,
      {
        "value": 1708.2,
        "label": "1708.20"
      },
      {
        "value": 1721.2,
        "label": "1721.20"
      },
      {
        "value": 1734.2,
        "label": "1734.20"
      },
      1747.45,
      1760.45,
      {
        "value": 1773.7,
        "label": "1773.70"
      }
    ],
    "bands": [
      {
        "axis": "y",
        "from": 1735.8,
        "to": 1758.7,
        "color": "#87cefa"
      },
      {
        "axis": "y",
        "from": 1665.2,
        "to": 1676.4,
        "color": "#87cefa"
      },
      {
        "axis": "y",
        "from": 1574.8,
        "to": 1581.5,
        "color": "#87cefa"
      }
    ],
    "annotations": [
      "1676.43"
    ]
  }
}
